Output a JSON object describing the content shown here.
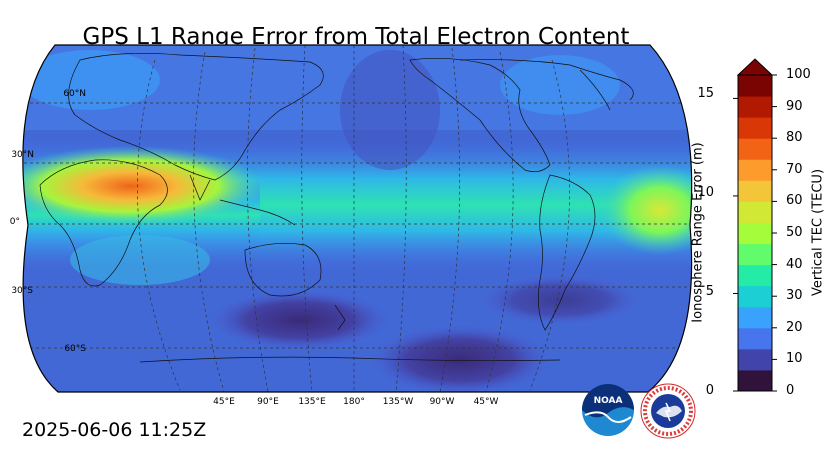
{
  "title": "GPS L1 Range Error from Total Electron Content",
  "timestamp": "2025-06-06 11:25Z",
  "map": {
    "projection": "Robinson, Pacific-centered",
    "lat_labels": [
      "60°N",
      "30°N",
      "0°",
      "30°S",
      "60°S"
    ],
    "lon_labels": [
      "45°E",
      "90°E",
      "135°E",
      "180°",
      "135°W",
      "90°W",
      "45°W"
    ]
  },
  "colorbar": {
    "left_label": "Ionosphere Range Error (m)",
    "right_label": "Vertical TEC (TECU)",
    "left_ticks": [
      "0",
      "5",
      "10",
      "15"
    ],
    "right_ticks": [
      "0",
      "10",
      "20",
      "30",
      "40",
      "50",
      "60",
      "70",
      "80",
      "90",
      "100"
    ],
    "extend": "max",
    "colors": [
      "#30123b",
      "#4145ab",
      "#4675ed",
      "#39a2fc",
      "#1bcfd4",
      "#24eca6",
      "#61fc6c",
      "#a4fc3b",
      "#d1e834",
      "#f3c63a",
      "#fe9b2d",
      "#f36315",
      "#d93806",
      "#b11901",
      "#7a0402"
    ]
  },
  "logos": {
    "noaa_text": "NOAA",
    "nws_text": "NATIONAL WEATHER SERVICE"
  }
}
